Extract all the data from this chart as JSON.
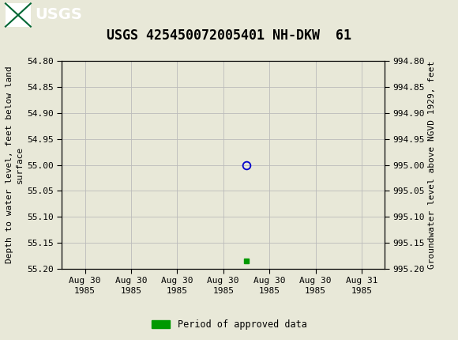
{
  "title": "USGS 425450072005401 NH-DKW  61",
  "ylabel_left": "Depth to water level, feet below land\nsurface",
  "ylabel_right": "Groundwater level above NGVD 1929, feet",
  "ylim_left": [
    54.8,
    55.2
  ],
  "ylim_right": [
    994.8,
    995.2
  ],
  "yticks_left": [
    54.8,
    54.85,
    54.9,
    54.95,
    55.0,
    55.05,
    55.1,
    55.15,
    55.2
  ],
  "yticks_right": [
    994.8,
    994.85,
    994.9,
    994.95,
    995.0,
    995.05,
    995.1,
    995.15,
    995.2
  ],
  "data_point_x": 3.5,
  "data_point_y": 55.0,
  "approved_point_x": 3.5,
  "approved_point_y": 55.185,
  "x_tick_labels": [
    "Aug 30\n1985",
    "Aug 30\n1985",
    "Aug 30\n1985",
    "Aug 30\n1985",
    "Aug 30\n1985",
    "Aug 30\n1985",
    "Aug 31\n1985"
  ],
  "x_tick_positions": [
    0,
    1,
    2,
    3,
    4,
    5,
    6
  ],
  "xlim": [
    -0.5,
    6.5
  ],
  "header_color": "#006633",
  "background_color": "#e8e8d8",
  "plot_bg_color": "#e8e8d8",
  "grid_color": "#bbbbbb",
  "open_circle_color": "#0000cc",
  "approved_color": "#009900",
  "legend_label": "Period of approved data",
  "title_fontsize": 12,
  "axis_label_fontsize": 8,
  "tick_fontsize": 8
}
